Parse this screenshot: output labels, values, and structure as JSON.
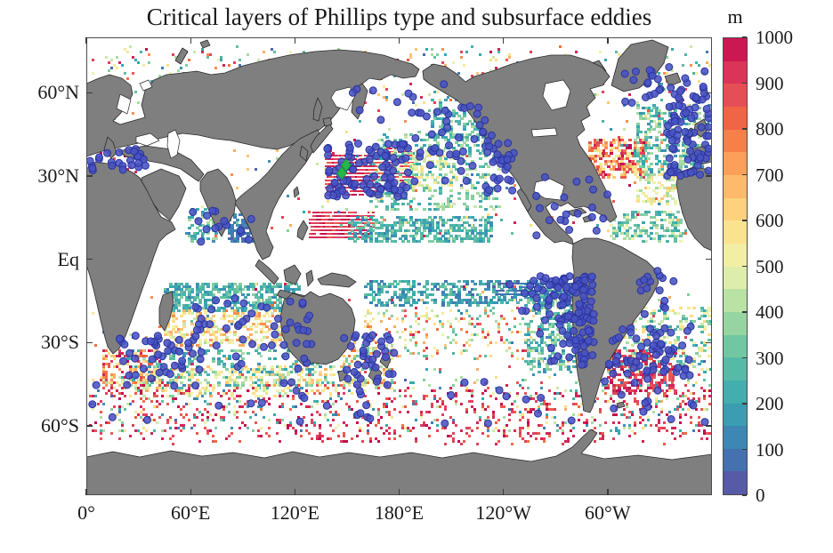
{
  "figure": {
    "title": "Critical layers of Phillips type and subsurface eddies",
    "colorbar_unit": "m"
  },
  "axes": {
    "x_ticks": [
      {
        "label": "0°",
        "lon": 0
      },
      {
        "label": "60°E",
        "lon": 60
      },
      {
        "label": "120°E",
        "lon": 120
      },
      {
        "label": "180°E",
        "lon": 180
      },
      {
        "label": "120°W",
        "lon": 240
      },
      {
        "label": "60°W",
        "lon": 300
      }
    ],
    "y_ticks": [
      {
        "label": "60°N",
        "lat": 60
      },
      {
        "label": "30°N",
        "lat": 30
      },
      {
        "label": "Eq",
        "lat": 0
      },
      {
        "label": "30°S",
        "lat": -30
      },
      {
        "label": "60°S",
        "lat": -60
      }
    ]
  },
  "colorbar": {
    "unit": "m",
    "min": 0,
    "max": 1000,
    "steps": 20,
    "tick_values": [
      0,
      100,
      200,
      300,
      400,
      500,
      600,
      700,
      800,
      900,
      1000
    ],
    "gradient_stops": [
      "#5e4fa2",
      "#3e7cb5",
      "#38a8b0",
      "#5fc0a2",
      "#a8dca2",
      "#eef3ae",
      "#fede85",
      "#fdae61",
      "#f4703f",
      "#e1425c",
      "#c3094e"
    ]
  },
  "style": {
    "land": "#7f7f7f",
    "coast": "#2b2b2b",
    "frame": "#4c4c4c",
    "ocean": "#ffffff",
    "dot_fill": "#4853c4",
    "dot_stroke": "#2c339c",
    "marker_green": "#27b648",
    "text": "#1a1a1a"
  },
  "chart_data": {
    "type": "heatmap",
    "subtype": "geographic-cell-map-with-scatter",
    "title": "Critical layers of Phillips type and subsurface eddies",
    "units": "m",
    "value_range": [
      0,
      1000
    ],
    "colorbar_ticks": [
      0,
      100,
      200,
      300,
      400,
      500,
      600,
      700,
      800,
      900,
      1000
    ],
    "x_axis_tick_labels": [
      "0°",
      "60°E",
      "120°E",
      "180°E",
      "120°W",
      "60°W"
    ],
    "y_axis_tick_labels": [
      "60°N",
      "30°N",
      "Eq",
      "30°S",
      "60°S"
    ],
    "lon_range": [
      0,
      360
    ],
    "lat_range": [
      -85,
      80
    ],
    "equator_gap_deg": 6.5,
    "seed": 1337,
    "cell_regions": [
      {
        "name": "kuroshio-core",
        "lon": [
          137,
          166
        ],
        "lat": [
          24,
          38
        ],
        "value": [
          850,
          1000
        ],
        "n": 500,
        "style": "dash"
      },
      {
        "name": "kuroshio-extension",
        "lon": [
          166,
          186
        ],
        "lat": [
          28,
          41
        ],
        "value": [
          800,
          1000
        ],
        "n": 150,
        "style": "dash"
      },
      {
        "name": "wpac-tropical-red",
        "lon": [
          128,
          163
        ],
        "lat": [
          8,
          17
        ],
        "value": [
          850,
          1000
        ],
        "n": 280,
        "style": "dash"
      },
      {
        "name": "wpac-tropical-teal",
        "lon": [
          150,
          232
        ],
        "lat": [
          6,
          16
        ],
        "value": [
          120,
          350
        ],
        "n": 420,
        "style": "block"
      },
      {
        "name": "npac-central-teal",
        "lon": [
          163,
          237
        ],
        "lat": [
          18,
          46
        ],
        "value": [
          180,
          450
        ],
        "n": 400,
        "style": "block"
      },
      {
        "name": "npac-yellow",
        "lon": [
          172,
          212
        ],
        "lat": [
          26,
          40
        ],
        "value": [
          400,
          620
        ],
        "n": 130,
        "style": "block"
      },
      {
        "name": "gulf-of-alaska",
        "lon": [
          198,
          236
        ],
        "lat": [
          44,
          58
        ],
        "value": [
          150,
          380
        ],
        "n": 160,
        "style": "block"
      },
      {
        "name": "bay-of-bengal-blue",
        "lon": [
          81,
          96
        ],
        "lat": [
          6,
          17
        ],
        "value": [
          40,
          160
        ],
        "n": 130,
        "style": "block"
      },
      {
        "name": "arabian-sea",
        "lon": [
          57,
          76
        ],
        "lat": [
          6,
          19
        ],
        "value": [
          150,
          400
        ],
        "n": 70,
        "style": "block"
      },
      {
        "name": "gulf-stream",
        "lon": [
          288,
          322
        ],
        "lat": [
          30,
          44
        ],
        "value": [
          550,
          1000
        ],
        "n": 280,
        "style": "block"
      },
      {
        "name": "natl-east",
        "lon": [
          315,
          358
        ],
        "lat": [
          32,
          56
        ],
        "value": [
          140,
          460
        ],
        "n": 320,
        "style": "block"
      },
      {
        "name": "natl-subtropical-yellow",
        "lon": [
          316,
          346
        ],
        "lat": [
          20,
          34
        ],
        "value": [
          350,
          660
        ],
        "n": 140,
        "style": "block"
      },
      {
        "name": "tropical-atlantic",
        "lon": [
          300,
          342
        ],
        "lat": [
          7,
          18
        ],
        "value": [
          180,
          520
        ],
        "n": 160,
        "style": "block"
      },
      {
        "name": "subpolar-north",
        "lon": [
          2,
          358
        ],
        "lat": [
          55,
          77
        ],
        "value": [
          60,
          1000
        ],
        "n": 420,
        "style": "sparse"
      },
      {
        "name": "mediterranean",
        "lon": [
          2,
          34
        ],
        "lat": [
          31,
          40
        ],
        "value": [
          600,
          1000
        ],
        "n": 22,
        "style": "sparse"
      },
      {
        "name": "south-indian-teal",
        "lon": [
          44,
          122
        ],
        "lat": [
          -18,
          -8
        ],
        "value": [
          140,
          350
        ],
        "n": 430,
        "style": "block"
      },
      {
        "name": "south-indian-orange",
        "lon": [
          44,
          112
        ],
        "lat": [
          -31,
          -18
        ],
        "value": [
          430,
          760
        ],
        "n": 300,
        "style": "block"
      },
      {
        "name": "south-midlat-teal",
        "lon": [
          18,
          142
        ],
        "lat": [
          -46,
          -32
        ],
        "value": [
          140,
          420
        ],
        "n": 300,
        "style": "block"
      },
      {
        "name": "south-midlat-orange",
        "lon": [
          28,
          142
        ],
        "lat": [
          -49,
          -38
        ],
        "value": [
          430,
          700
        ],
        "n": 230,
        "style": "block"
      },
      {
        "name": "spac-tropical",
        "lon": [
          160,
          288
        ],
        "lat": [
          -16,
          -7
        ],
        "value": [
          60,
          320
        ],
        "n": 470,
        "style": "block"
      },
      {
        "name": "peru-blue-streaks",
        "lon": [
          235,
          285
        ],
        "lat": [
          -13,
          -8
        ],
        "value": [
          40,
          140
        ],
        "n": 140,
        "style": "dash"
      },
      {
        "name": "spac-central",
        "lon": [
          158,
          262
        ],
        "lat": [
          -36,
          -17
        ],
        "value": [
          250,
          950
        ],
        "n": 230,
        "style": "sparse"
      },
      {
        "name": "sepac-teal",
        "lon": [
          252,
          292
        ],
        "lat": [
          -40,
          -10
        ],
        "value": [
          140,
          420
        ],
        "n": 360,
        "style": "block"
      },
      {
        "name": "south-atlantic",
        "lon": [
          298,
          360
        ],
        "lat": [
          -40,
          -17
        ],
        "value": [
          200,
          620
        ],
        "n": 300,
        "style": "block"
      },
      {
        "name": "brazil-malvinas-red",
        "lon": [
          298,
          338
        ],
        "lat": [
          -48,
          -32
        ],
        "value": [
          840,
          1000
        ],
        "n": 230,
        "style": "block"
      },
      {
        "name": "southern-ocean-red",
        "lon": [
          2,
          358
        ],
        "lat": [
          -66,
          -44
        ],
        "value": [
          820,
          1000
        ],
        "n": 700,
        "style": "sparse"
      },
      {
        "name": "southern-ocean-mixed",
        "lon": [
          2,
          358
        ],
        "lat": [
          -62,
          -42
        ],
        "value": [
          60,
          620
        ],
        "n": 340,
        "style": "sparse"
      },
      {
        "name": "agulhas",
        "lon": [
          8,
          42
        ],
        "lat": [
          -46,
          -32
        ],
        "value": [
          550,
          1000
        ],
        "n": 160,
        "style": "sparse"
      },
      {
        "name": "tasman",
        "lon": [
          146,
          176
        ],
        "lat": [
          -46,
          -29
        ],
        "value": [
          250,
          820
        ],
        "n": 160,
        "style": "sparse"
      },
      {
        "name": "noise-north",
        "lon": [
          2,
          358
        ],
        "lat": [
          8,
          54
        ],
        "value": [
          60,
          1000
        ],
        "n": 260,
        "style": "sparse"
      },
      {
        "name": "noise-south",
        "lon": [
          2,
          358
        ],
        "lat": [
          -54,
          -8
        ],
        "value": [
          60,
          1000
        ],
        "n": 260,
        "style": "sparse"
      }
    ],
    "eddy_dot_clusters": [
      {
        "name": "nw-pacific",
        "lon": [
          138,
          186
        ],
        "lat": [
          22,
          42
        ],
        "n": 95
      },
      {
        "name": "se-pacific-north",
        "lon": [
          240,
          292
        ],
        "lat": [
          -22,
          -6
        ],
        "n": 85,
        "bias": "east"
      },
      {
        "name": "se-pacific-south",
        "lon": [
          255,
          292
        ],
        "lat": [
          -38,
          -20
        ],
        "n": 50,
        "bias": "east"
      },
      {
        "name": "california",
        "lon": [
          228,
          246
        ],
        "lat": [
          24,
          46
        ],
        "n": 30
      },
      {
        "name": "ne-atlantic",
        "lon": [
          334,
          360
        ],
        "lat": [
          30,
          60
        ],
        "n": 75
      },
      {
        "name": "mediterranean",
        "lon": [
          2,
          35
        ],
        "lat": [
          32,
          40
        ],
        "n": 26
      },
      {
        "name": "south-atlantic",
        "lon": [
          300,
          348
        ],
        "lat": [
          -43,
          -24
        ],
        "n": 60
      },
      {
        "name": "agulhas",
        "lon": [
          18,
          62
        ],
        "lat": [
          -43,
          -27
        ],
        "n": 40
      },
      {
        "name": "south-indian",
        "lon": [
          62,
          132
        ],
        "lat": [
          -40,
          -14
        ],
        "n": 55
      },
      {
        "name": "tasman-nz",
        "lon": [
          148,
          180
        ],
        "lat": [
          -46,
          -27
        ],
        "n": 35
      },
      {
        "name": "southern-ocean",
        "lon": [
          2,
          358
        ],
        "lat": [
          -60,
          -42
        ],
        "n": 50
      },
      {
        "name": "north-pacific",
        "lon": [
          186,
          232
        ],
        "lat": [
          28,
          56
        ],
        "n": 40
      },
      {
        "name": "subpolar-atlantic",
        "lon": [
          308,
          356
        ],
        "lat": [
          55,
          70
        ],
        "n": 30
      },
      {
        "name": "north-indian",
        "lon": [
          58,
          96
        ],
        "lat": [
          5,
          18
        ],
        "n": 15
      },
      {
        "name": "caribbean",
        "lon": [
          258,
          302
        ],
        "lat": [
          8,
          30
        ],
        "n": 20
      },
      {
        "name": "brazil",
        "lon": [
          318,
          342
        ],
        "lat": [
          -20,
          -4
        ],
        "n": 15
      },
      {
        "name": "bering",
        "lon": [
          150,
          210
        ],
        "lat": [
          50,
          64
        ],
        "n": 12
      }
    ],
    "special_markers": [
      {
        "shape": "diamond",
        "color": "#27b648",
        "lon": 147,
        "lat": 31
      },
      {
        "shape": "diamond",
        "color": "#27b648",
        "lon": 149.5,
        "lat": 34
      }
    ]
  }
}
